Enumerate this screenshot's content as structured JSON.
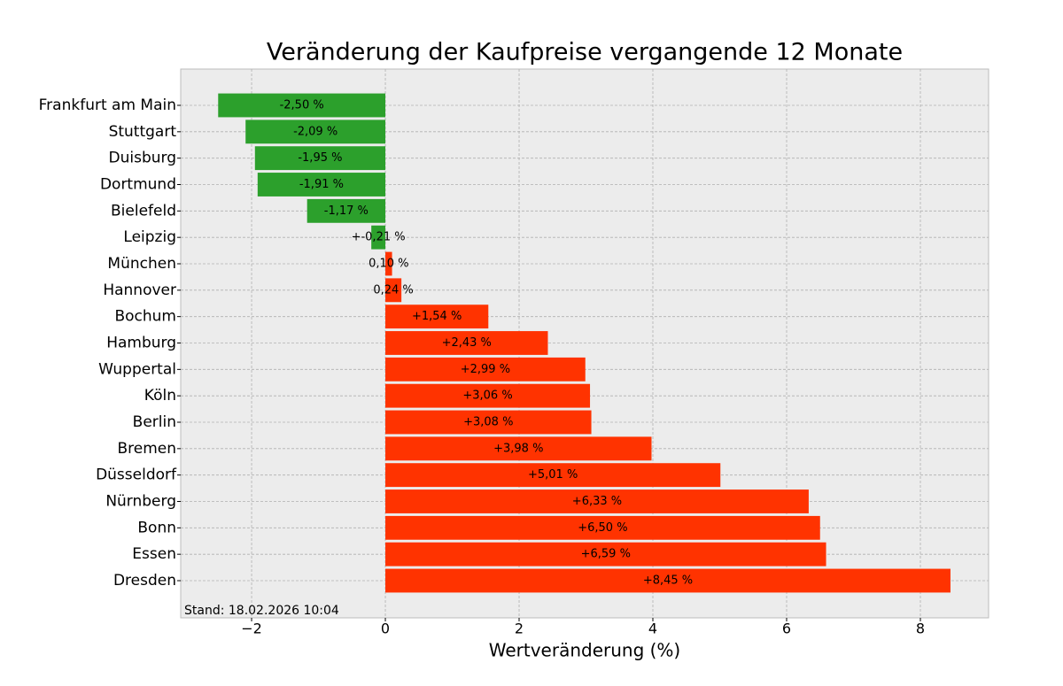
{
  "chart_data": {
    "type": "barh",
    "title": "Veränderung der Kaufpreise vergangende 12 Monate",
    "x_label": "Wertveränderung (%)",
    "annotation": "Stand: 18.02.2026 10:04",
    "categories": [
      "Frankfurt am Main",
      "Stuttgart",
      "Duisburg",
      "Dortmund",
      "Bielefeld",
      "Leipzig",
      "München",
      "Hannover",
      "Bochum",
      "Hamburg",
      "Wuppertal",
      "Köln",
      "Berlin",
      "Bremen",
      "Düsseldorf",
      "Nürnberg",
      "Bonn",
      "Essen",
      "Dresden"
    ],
    "values": [
      -2.5,
      -2.09,
      -1.95,
      -1.91,
      -1.17,
      -0.21,
      0.1,
      0.24,
      1.54,
      2.43,
      2.99,
      3.06,
      3.08,
      3.98,
      5.01,
      6.33,
      6.5,
      6.59,
      8.45
    ],
    "value_labels": [
      "-2,50 %",
      "-2,09 %",
      "-1,95 %",
      "-1,91 %",
      "-1,17 %",
      "+-0,21 %",
      "0,10 %",
      "0,24 %",
      "+1,54 %",
      "+2,43 %",
      "+2,99 %",
      "+3,06 %",
      "+3,08 %",
      "+3,98 %",
      "+5,01 %",
      "+6,33 %",
      "+6,50 %",
      "+6,59 %",
      "+8,45 %"
    ],
    "colors": [
      "#2ca02c",
      "#2ca02c",
      "#2ca02c",
      "#2ca02c",
      "#2ca02c",
      "#2ca02c",
      "#ff3300",
      "#ff3300",
      "#ff3300",
      "#ff3300",
      "#ff3300",
      "#ff3300",
      "#ff3300",
      "#ff3300",
      "#ff3300",
      "#ff3300",
      "#ff3300",
      "#ff3300",
      "#ff3300"
    ],
    "xlim": [
      -3.06,
      9.02
    ],
    "xticks": [
      {
        "value": -2,
        "label": "−2"
      },
      0,
      2,
      4,
      6,
      8
    ],
    "grid": true
  }
}
